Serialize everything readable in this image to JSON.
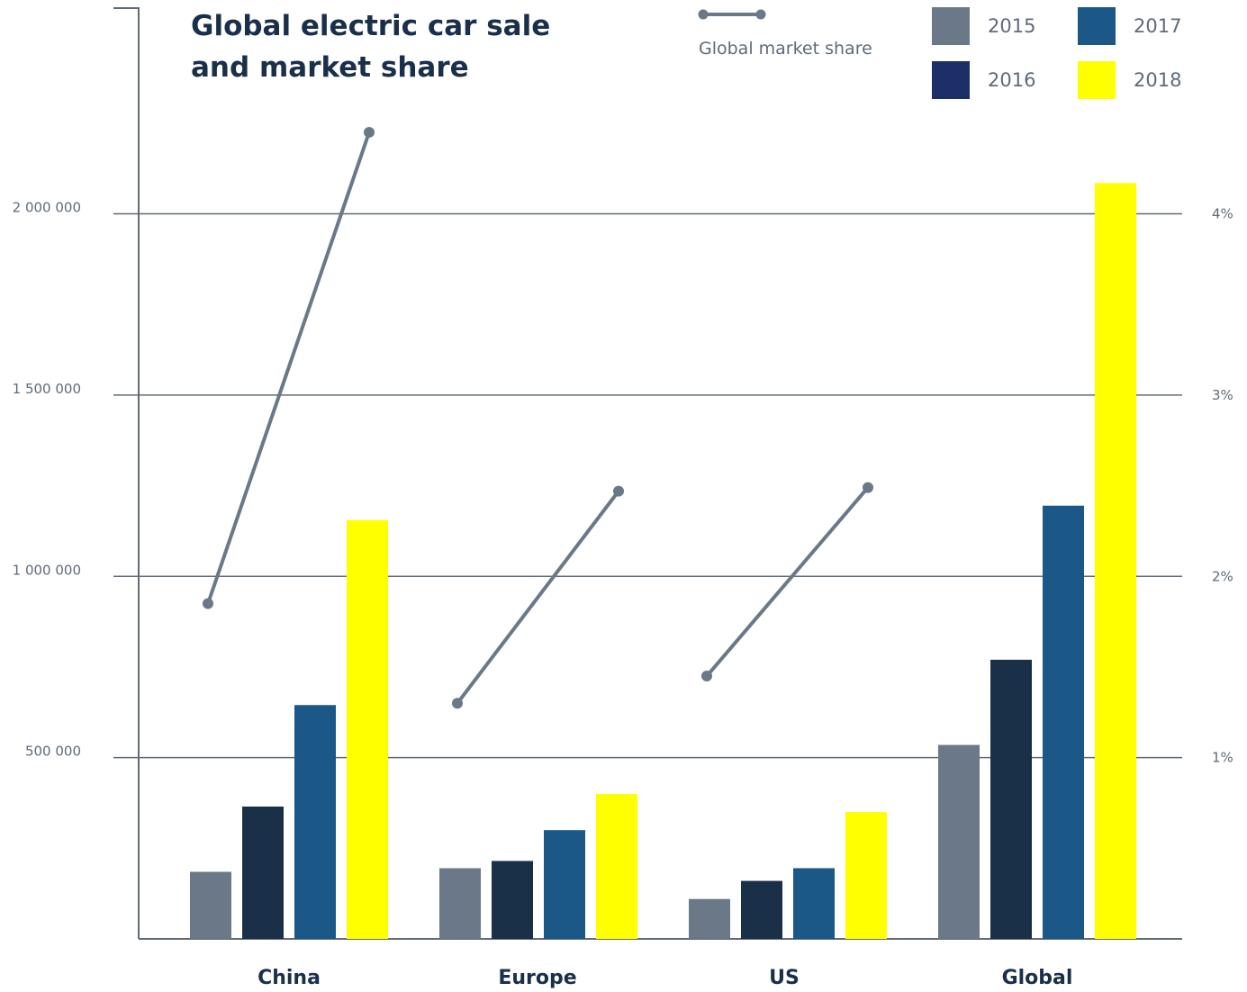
{
  "chart_data": {
    "type": "bar",
    "title": "Global electric car sale and market share",
    "categories": [
      "China",
      "Europe",
      "US",
      "Global"
    ],
    "series": [
      {
        "name": "2015",
        "color": "#6b7887",
        "values": [
          185000,
          195000,
          110000,
          535000
        ]
      },
      {
        "name": "2016",
        "color": "#1a3048",
        "values": [
          365000,
          215000,
          160000,
          770000
        ]
      },
      {
        "name": "2017",
        "color": "#1b5787",
        "values": [
          645000,
          300000,
          195000,
          1195000
        ]
      },
      {
        "name": "2018",
        "color": "#ffff00",
        "values": [
          1155000,
          400000,
          350000,
          2085000
        ]
      }
    ],
    "legend_colors": {
      "2016": "#1c2f66"
    },
    "line_series": {
      "name": "Global market share",
      "color": "#6b7887",
      "segments": [
        {
          "category": "China",
          "from": 1.85,
          "to": 4.45
        },
        {
          "category": "Europe",
          "from": 1.3,
          "to": 2.47
        },
        {
          "category": "US",
          "from": 1.45,
          "to": 2.49
        }
      ]
    },
    "y_left": {
      "ylim": [
        0,
        2570000
      ],
      "ticks": [
        500000,
        1000000,
        1500000,
        2000000
      ],
      "tick_labels": [
        "500 000",
        "1 000 000",
        "1 500 000",
        "2 000 000"
      ]
    },
    "y_right": {
      "ylim": [
        0,
        5.14
      ],
      "ticks": [
        1,
        2,
        3,
        4
      ],
      "tick_labels": [
        "1%",
        "2%",
        "3%",
        "4%"
      ]
    },
    "grid": true,
    "legend_position": "top-right"
  }
}
